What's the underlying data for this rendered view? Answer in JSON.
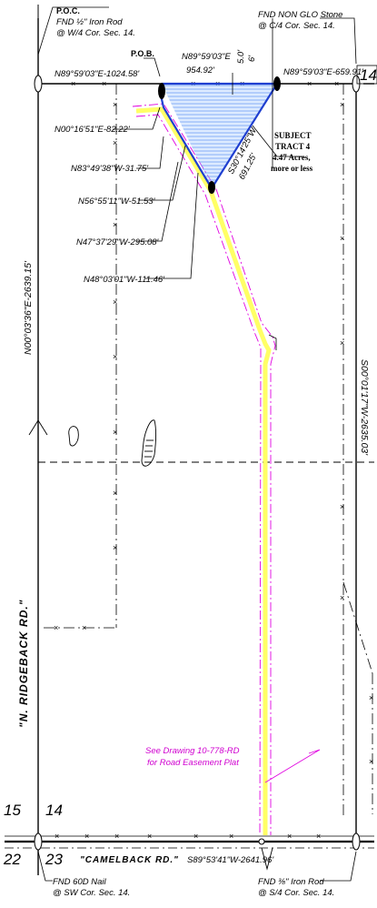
{
  "corners": {
    "poc_title": "P.O.C.",
    "nw_line1": "FND ½\" Iron Rod",
    "nw_line2": "@ W/4 Cor. Sec. 14.",
    "ne_line1": "FND NON GLO Stone",
    "ne_line2": "@ C/4 Cor. Sec. 14.",
    "sw_line1": "FND 60D Nail",
    "sw_line2": "@ SW Cor. Sec. 14.",
    "se_line1": "FND ⅜\" Iron Rod",
    "se_line2": "@ S/4 Cor. Sec. 14."
  },
  "pob": "P.O.B.",
  "bearings": {
    "north_west": "N89°59'03\"E-1024.58'",
    "north_tract_bearing": "N89°59'03\"E",
    "north_tract_dist": "954.92'",
    "north_east": "N89°59'03\"E-659.91'",
    "tick_label_top": "5.0'",
    "tick_label_mid": "6'",
    "l1": "N00°16'51\"E-82.22'",
    "l2": "N83°49'38\"W-31.75'",
    "l3": "N56°55'11\"W-51.53'",
    "l4": "N47°37'29\"W-295.08'",
    "l5": "N48°03'01\"W-111.46'",
    "diag_bearing": "S30°14'25\"W",
    "diag_dist": "691.25'",
    "west_line": "N00°03'36\"E-2639.15'",
    "east_line": "S00°01'17\"W-2635.03'",
    "south_line": "S89°53'41\"W-2641.96'"
  },
  "subject": {
    "line1": "SUBJECT",
    "line2": "TRACT 4",
    "line3": "4.47 Acres,",
    "line4": "more or less"
  },
  "sections": {
    "nw_num": "14",
    "a": "15",
    "b": "14",
    "c": "22",
    "d": "23"
  },
  "roads": {
    "west": "\"N. RIDGEBACK RD.\"",
    "south": "\"CAMELBACK RD.\""
  },
  "note": {
    "line1": "See Drawing 10-778-RD",
    "line2": "for Road Easement Plat"
  },
  "colors": {
    "tract_line": "#1f3fd0",
    "tract_fill": "#9fc6ff",
    "easement": "#e000e0",
    "road": "#ffff66",
    "ink": "#000000"
  }
}
